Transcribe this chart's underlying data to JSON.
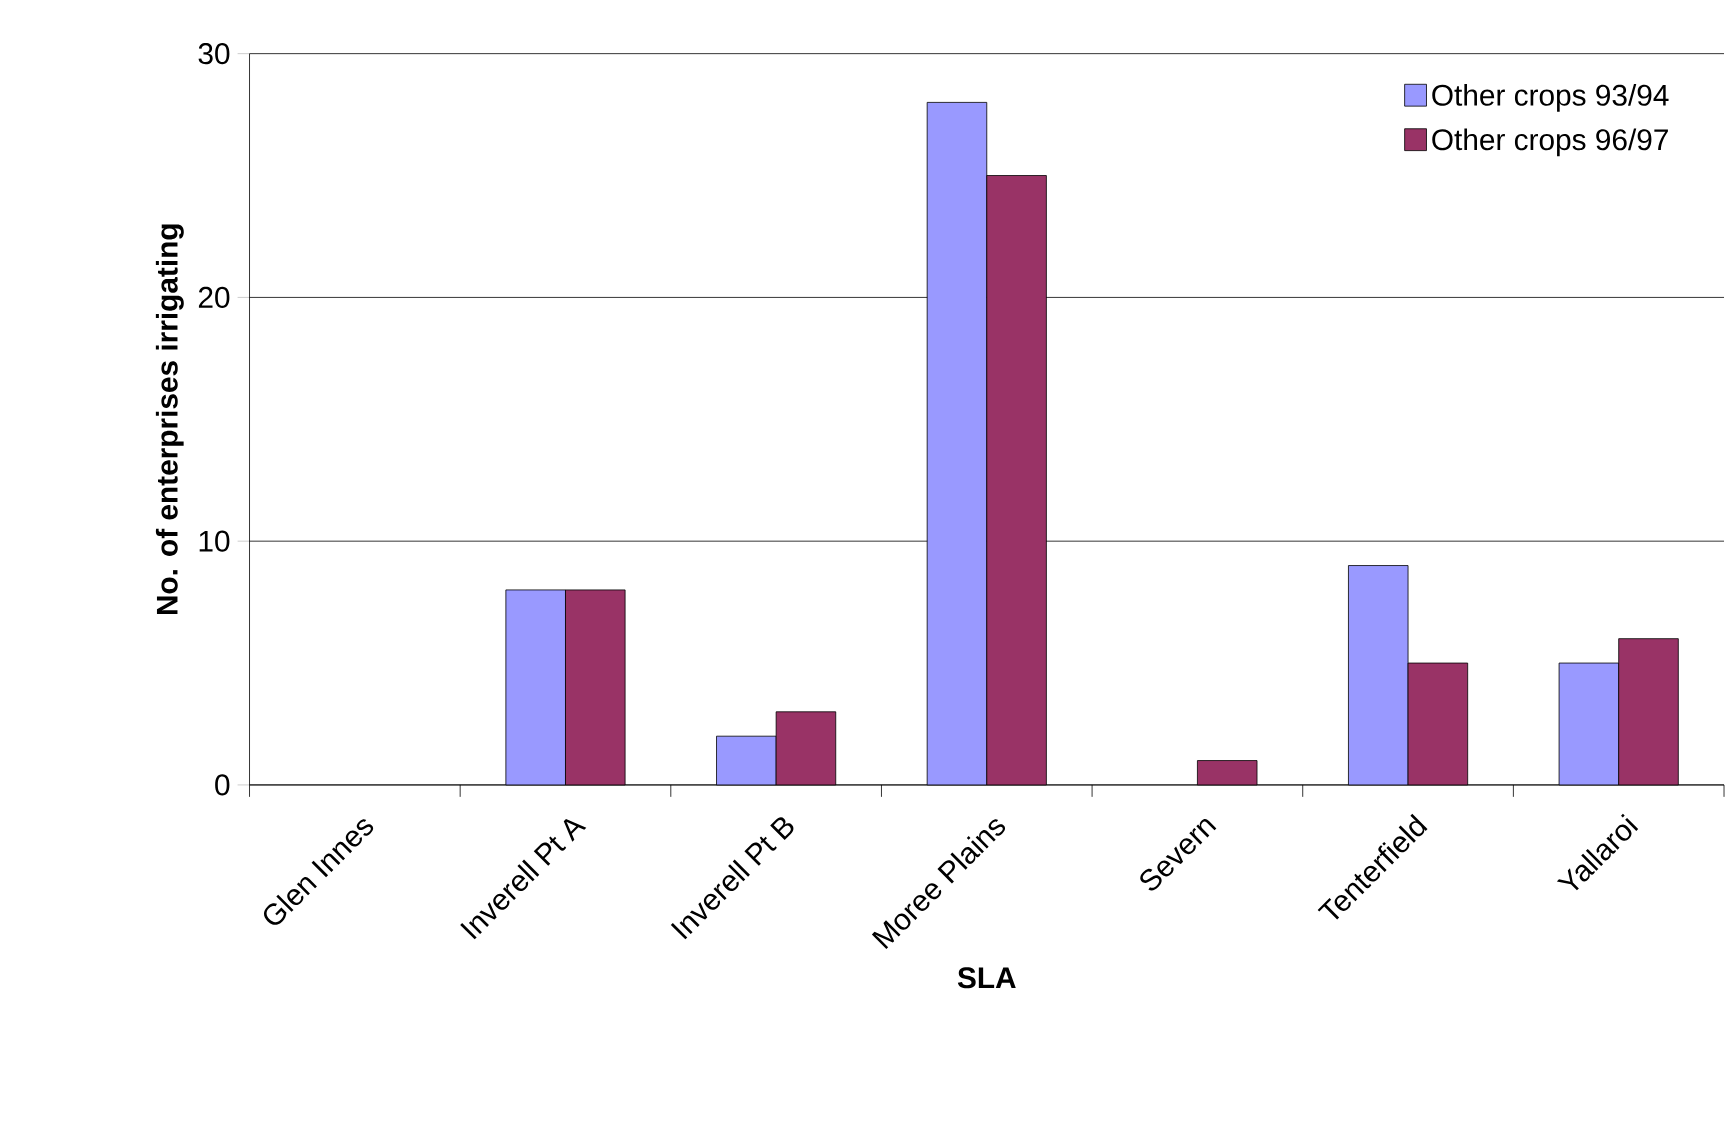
{
  "chart_data": {
    "type": "bar",
    "xlabel": "SLA",
    "ylabel": "No. of enterprises irrigating",
    "categories": [
      "Glen Innes",
      "Inverell Pt A",
      "Inverell Pt B",
      "Moree Plains",
      "Severn",
      "Tenterfield",
      "Yallaroi"
    ],
    "series": [
      {
        "name": "Other crops 93/94",
        "color": "#9999ff",
        "values": [
          0,
          8,
          2,
          28,
          0,
          9,
          5
        ]
      },
      {
        "name": "Other crops 96/97",
        "color": "#993366",
        "values": [
          0,
          8,
          3,
          25,
          1,
          5,
          6
        ]
      }
    ],
    "ylim": [
      0,
      30
    ],
    "yticks": [
      0,
      10,
      20,
      30
    ],
    "grid": "y",
    "legend": "top right"
  }
}
